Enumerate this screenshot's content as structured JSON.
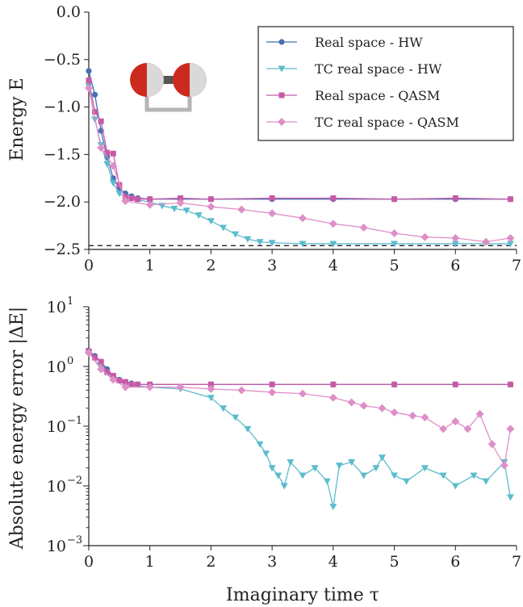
{
  "chart_data": [
    {
      "type": "line",
      "xlabel": "",
      "ylabel": "Energy  E",
      "xlim": [
        0,
        7
      ],
      "ylim": [
        -2.5,
        0.0
      ],
      "yscale": "linear",
      "xticks": [
        "0",
        "1",
        "2",
        "3",
        "4",
        "5",
        "6",
        "7"
      ],
      "yticks": [
        "0.0",
        "−0.5",
        "−1.0",
        "−1.5",
        "−2.0",
        "−2.5"
      ],
      "reference_line": {
        "y": -2.46,
        "style": "dashed",
        "color": "#222222"
      },
      "inset_icon": "h2-molecule-icon",
      "legend_position": "top-right",
      "series": [
        {
          "name": "Real space - HW",
          "color": "#4a6fb5",
          "marker": "circle",
          "x": [
            0,
            0.1,
            0.2,
            0.3,
            0.4,
            0.5,
            0.6,
            0.7,
            0.8,
            1,
            1.5,
            2,
            3,
            4,
            5,
            6,
            6.9
          ],
          "y": [
            -0.62,
            -0.87,
            -1.25,
            -1.53,
            -1.75,
            -1.86,
            -1.91,
            -1.94,
            -1.96,
            -1.97,
            -1.97,
            -1.97,
            -1.97,
            -1.97,
            -1.97,
            -1.97,
            -1.97
          ]
        },
        {
          "name": "TC real space - HW",
          "color": "#5bbccc",
          "marker": "triangle-down",
          "x": [
            0,
            0.1,
            0.2,
            0.3,
            0.4,
            0.5,
            0.6,
            0.8,
            1,
            1.2,
            1.4,
            1.6,
            1.8,
            2,
            2.2,
            2.4,
            2.6,
            2.8,
            3,
            3.5,
            4,
            5,
            6,
            6.9
          ],
          "y": [
            -0.78,
            -1.13,
            -1.4,
            -1.6,
            -1.8,
            -1.91,
            -1.95,
            -1.98,
            -2.0,
            -2.04,
            -2.07,
            -2.09,
            -2.14,
            -2.2,
            -2.27,
            -2.34,
            -2.39,
            -2.42,
            -2.43,
            -2.44,
            -2.44,
            -2.44,
            -2.44,
            -2.44
          ]
        },
        {
          "name": "Real space - QASM",
          "color": "#c75aa6",
          "marker": "square",
          "x": [
            0,
            0.1,
            0.2,
            0.3,
            0.4,
            0.5,
            0.6,
            0.7,
            0.8,
            1,
            1.5,
            2,
            3,
            4,
            5,
            6,
            6.9
          ],
          "y": [
            -0.72,
            -1.05,
            -1.15,
            -1.48,
            -1.49,
            -1.82,
            -1.95,
            -1.96,
            -1.97,
            -1.97,
            -1.96,
            -1.97,
            -1.96,
            -1.96,
            -1.97,
            -1.96,
            -1.97
          ]
        },
        {
          "name": "TC real space - QASM",
          "color": "#de8fc8",
          "marker": "diamond",
          "x": [
            0,
            0.2,
            0.4,
            0.6,
            1,
            1.5,
            2,
            2.5,
            3,
            3.5,
            4,
            4.5,
            5,
            5.5,
            6,
            6.5,
            6.9
          ],
          "y": [
            -0.8,
            -1.43,
            -1.62,
            -1.99,
            -2.03,
            -2.01,
            -2.05,
            -2.08,
            -2.12,
            -2.17,
            -2.23,
            -2.27,
            -2.33,
            -2.37,
            -2.38,
            -2.42,
            -2.38
          ]
        }
      ]
    },
    {
      "type": "line",
      "xlabel": "Imaginary time  τ",
      "ylabel": "Absolute energy error |ΔE|",
      "xlim": [
        0,
        7
      ],
      "ylim": [
        0.001,
        10
      ],
      "yscale": "log",
      "xticks": [
        "0",
        "1",
        "2",
        "3",
        "4",
        "5",
        "6",
        "7"
      ],
      "yticks": [
        {
          "base": "10",
          "exp": "1"
        },
        {
          "base": "10",
          "exp": "0"
        },
        {
          "base": "10",
          "exp": "−1"
        },
        {
          "base": "10",
          "exp": "−2"
        },
        {
          "base": "10",
          "exp": "−3"
        }
      ],
      "series": [
        {
          "name": "Real space - HW",
          "color": "#4a6fb5",
          "marker": "circle",
          "x": [
            0,
            0.1,
            0.2,
            0.3,
            0.4,
            0.5,
            0.6,
            0.7,
            0.8,
            1,
            2,
            3,
            4,
            5,
            6,
            6.9
          ],
          "y": [
            1.8,
            1.5,
            1.2,
            0.9,
            0.7,
            0.6,
            0.55,
            0.52,
            0.5,
            0.5,
            0.5,
            0.5,
            0.5,
            0.5,
            0.5,
            0.5
          ]
        },
        {
          "name": "TC real space - HW",
          "color": "#5bbccc",
          "marker": "triangle-down",
          "x": [
            0,
            0.2,
            0.4,
            0.6,
            1,
            1.5,
            2,
            2.2,
            2.4,
            2.6,
            2.8,
            2.9,
            3,
            3.1,
            3.2,
            3.3,
            3.5,
            3.7,
            3.9,
            4.0,
            4.1,
            4.3,
            4.5,
            4.7,
            4.8,
            5,
            5.2,
            5.5,
            5.8,
            6,
            6.3,
            6.5,
            6.8,
            6.9
          ],
          "y": [
            1.7,
            0.95,
            0.62,
            0.5,
            0.45,
            0.42,
            0.3,
            0.2,
            0.14,
            0.09,
            0.05,
            0.035,
            0.02,
            0.015,
            0.01,
            0.025,
            0.015,
            0.02,
            0.012,
            0.0045,
            0.022,
            0.025,
            0.015,
            0.02,
            0.03,
            0.015,
            0.012,
            0.02,
            0.015,
            0.01,
            0.015,
            0.012,
            0.025,
            0.0065
          ]
        },
        {
          "name": "Real space - QASM",
          "color": "#c75aa6",
          "marker": "square",
          "x": [
            0,
            0.1,
            0.2,
            0.3,
            0.4,
            0.5,
            0.6,
            0.7,
            0.8,
            1,
            2,
            3,
            4,
            5,
            6,
            6.9
          ],
          "y": [
            1.8,
            1.4,
            1.2,
            0.8,
            0.7,
            0.58,
            0.55,
            0.5,
            0.5,
            0.5,
            0.5,
            0.5,
            0.5,
            0.5,
            0.5,
            0.5
          ]
        },
        {
          "name": "TC real space - QASM",
          "color": "#de8fc8",
          "marker": "diamond",
          "x": [
            0,
            0.2,
            0.4,
            0.6,
            1,
            1.5,
            2,
            2.5,
            3,
            3.5,
            4,
            4.3,
            4.5,
            4.8,
            5,
            5.3,
            5.5,
            5.8,
            6,
            6.2,
            6.4,
            6.6,
            6.8,
            6.9
          ],
          "y": [
            1.7,
            0.9,
            0.6,
            0.45,
            0.45,
            0.45,
            0.42,
            0.4,
            0.37,
            0.35,
            0.3,
            0.25,
            0.22,
            0.2,
            0.17,
            0.15,
            0.14,
            0.09,
            0.12,
            0.09,
            0.16,
            0.05,
            0.022,
            0.09
          ]
        }
      ]
    }
  ]
}
